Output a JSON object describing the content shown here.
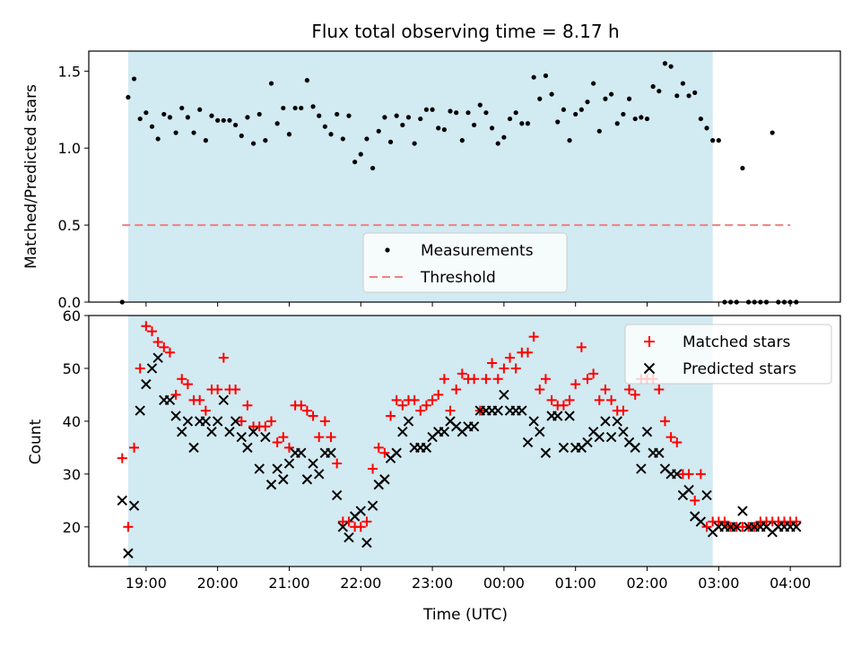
{
  "chart_data": [
    {
      "type": "scatter",
      "title": "Flux total observing time = 8.17 h",
      "xlabel": "",
      "ylabel": "Matched/Predicted stars",
      "ylim": [
        0,
        1.63
      ],
      "yticks": [
        0.0,
        0.5,
        1.0,
        1.5
      ],
      "ytick_labels": [
        "0.0",
        "0.5",
        "1.0",
        "1.5"
      ],
      "observing_window": {
        "start": "18:45",
        "end": "02:55"
      },
      "shade_color": "#add8e6",
      "threshold": {
        "name": "Threshold",
        "value": 0.5,
        "x_range": [
          "18:40",
          "04:00"
        ],
        "color": "#f08080"
      },
      "legend": {
        "placement": "lower center",
        "entries": [
          "Measurements",
          "Threshold"
        ]
      },
      "series": [
        {
          "name": "Measurements",
          "marker": "dot",
          "color": "#000000",
          "x": [
            "18:40",
            "18:45",
            "18:50",
            "18:55",
            "19:00",
            "19:05",
            "19:10",
            "19:15",
            "19:20",
            "19:25",
            "19:30",
            "19:35",
            "19:40",
            "19:45",
            "19:50",
            "19:55",
            "20:00",
            "20:05",
            "20:10",
            "20:15",
            "20:20",
            "20:25",
            "20:30",
            "20:35",
            "20:40",
            "20:45",
            "20:50",
            "20:55",
            "21:00",
            "21:05",
            "21:10",
            "21:15",
            "21:20",
            "21:25",
            "21:30",
            "21:35",
            "21:40",
            "21:45",
            "21:50",
            "21:55",
            "22:00",
            "22:05",
            "22:10",
            "22:15",
            "22:20",
            "22:25",
            "22:30",
            "22:35",
            "22:40",
            "22:45",
            "22:50",
            "22:55",
            "23:00",
            "23:05",
            "23:10",
            "23:15",
            "23:20",
            "23:25",
            "23:30",
            "23:35",
            "23:40",
            "23:45",
            "23:50",
            "23:55",
            "00:00",
            "00:05",
            "00:10",
            "00:15",
            "00:20",
            "00:25",
            "00:30",
            "00:35",
            "00:40",
            "00:45",
            "00:50",
            "00:55",
            "01:00",
            "01:05",
            "01:10",
            "01:15",
            "01:20",
            "01:25",
            "01:30",
            "01:35",
            "01:40",
            "01:45",
            "01:50",
            "01:55",
            "02:00",
            "02:05",
            "02:10",
            "02:15",
            "02:20",
            "02:25",
            "02:30",
            "02:35",
            "02:40",
            "02:45",
            "02:50",
            "02:55",
            "03:00",
            "03:05",
            "03:10",
            "03:15",
            "03:20",
            "03:25",
            "03:30",
            "03:35",
            "03:40",
            "03:45",
            "03:50",
            "03:55",
            "04:00",
            "04:05"
          ],
          "y": [
            0.0,
            1.33,
            1.45,
            1.19,
            1.23,
            1.14,
            1.06,
            1.22,
            1.2,
            1.1,
            1.26,
            1.2,
            1.1,
            1.25,
            1.05,
            1.21,
            1.18,
            1.18,
            1.18,
            1.15,
            1.08,
            1.2,
            1.03,
            1.22,
            1.05,
            1.42,
            1.16,
            1.26,
            1.09,
            1.26,
            1.26,
            1.44,
            1.27,
            1.21,
            1.14,
            1.09,
            1.22,
            1.06,
            1.21,
            0.91,
            0.96,
            1.06,
            0.87,
            1.11,
            1.2,
            1.04,
            1.21,
            1.15,
            1.2,
            1.03,
            1.19,
            1.25,
            1.25,
            1.13,
            1.12,
            1.24,
            1.23,
            1.05,
            1.23,
            1.15,
            1.28,
            1.23,
            1.13,
            1.03,
            1.07,
            1.19,
            1.23,
            1.16,
            1.16,
            1.46,
            1.32,
            1.47,
            1.35,
            1.17,
            1.25,
            1.05,
            1.22,
            1.25,
            1.3,
            1.42,
            1.11,
            1.32,
            1.35,
            1.16,
            1.22,
            1.32,
            1.19,
            1.2,
            1.19,
            1.4,
            1.37,
            1.55,
            1.53,
            1.34,
            1.42,
            1.34,
            1.36,
            1.19,
            1.13,
            1.05,
            1.05,
            0.0,
            0.0,
            0.0,
            0.87,
            0.0,
            0.0,
            0.0,
            0.0,
            1.1,
            0.0,
            0.0,
            0.0,
            0.0
          ]
        }
      ]
    },
    {
      "type": "scatter",
      "xlabel": "Time (UTC)",
      "ylabel": "Count",
      "ylim": [
        12.5,
        60
      ],
      "yticks": [
        20,
        30,
        40,
        50,
        60
      ],
      "ytick_labels": [
        "20",
        "30",
        "40",
        "50",
        "60"
      ],
      "xticks": [
        "19:00",
        "20:00",
        "21:00",
        "22:00",
        "23:00",
        "00:00",
        "01:00",
        "02:00",
        "03:00",
        "04:00"
      ],
      "observing_window": {
        "start": "18:45",
        "end": "02:55"
      },
      "shade_color": "#add8e6",
      "legend": {
        "placement": "upper right",
        "entries": [
          "Matched stars",
          "Predicted stars"
        ]
      },
      "series": [
        {
          "name": "Matched stars",
          "marker": "plus",
          "color": "#ff0000",
          "x": [
            "18:40",
            "18:45",
            "18:50",
            "18:55",
            "19:00",
            "19:05",
            "19:10",
            "19:15",
            "19:20",
            "19:25",
            "19:30",
            "19:35",
            "19:40",
            "19:45",
            "19:50",
            "19:55",
            "20:00",
            "20:05",
            "20:10",
            "20:15",
            "20:20",
            "20:25",
            "20:30",
            "20:35",
            "20:40",
            "20:45",
            "20:50",
            "20:55",
            "21:00",
            "21:05",
            "21:10",
            "21:15",
            "21:20",
            "21:25",
            "21:30",
            "21:35",
            "21:40",
            "21:45",
            "21:50",
            "21:55",
            "22:00",
            "22:05",
            "22:10",
            "22:15",
            "22:20",
            "22:25",
            "22:30",
            "22:35",
            "22:40",
            "22:45",
            "22:50",
            "22:55",
            "23:00",
            "23:05",
            "23:10",
            "23:15",
            "23:20",
            "23:25",
            "23:30",
            "23:35",
            "23:40",
            "23:45",
            "23:50",
            "23:55",
            "00:00",
            "00:05",
            "00:10",
            "00:15",
            "00:20",
            "00:25",
            "00:30",
            "00:35",
            "00:40",
            "00:45",
            "00:50",
            "00:55",
            "01:00",
            "01:05",
            "01:10",
            "01:15",
            "01:20",
            "01:25",
            "01:30",
            "01:35",
            "01:40",
            "01:45",
            "01:50",
            "01:55",
            "02:00",
            "02:05",
            "02:10",
            "02:15",
            "02:20",
            "02:25",
            "02:30",
            "02:35",
            "02:40",
            "02:45",
            "02:50",
            "02:55",
            "03:00",
            "03:05",
            "03:10",
            "03:15",
            "03:20",
            "03:25",
            "03:30",
            "03:35",
            "03:40",
            "03:45",
            "03:50",
            "03:55",
            "04:00",
            "04:05"
          ],
          "y": [
            33,
            20,
            35,
            50,
            58,
            57,
            55,
            54,
            53,
            45,
            48,
            47,
            44,
            44,
            42,
            46,
            46,
            52,
            46,
            46,
            40,
            43,
            39,
            39,
            39,
            40,
            36,
            37,
            35,
            43,
            43,
            42,
            41,
            37,
            40,
            37,
            32,
            21,
            21,
            20,
            20,
            21,
            31,
            35,
            34,
            41,
            44,
            43,
            44,
            44,
            42,
            43,
            44,
            45,
            48,
            42,
            46,
            49,
            48,
            48,
            42,
            48,
            51,
            48,
            50,
            52,
            50,
            53,
            53,
            56,
            46,
            48,
            44,
            43,
            43,
            44,
            47,
            54,
            48,
            49,
            44,
            46,
            44,
            42,
            42,
            46,
            45,
            48,
            48,
            48,
            46,
            40,
            37,
            36,
            30,
            30,
            25,
            30,
            20,
            21,
            21,
            21,
            20,
            20,
            20,
            20,
            20,
            21,
            21,
            21,
            21,
            21,
            21,
            21
          ]
        },
        {
          "name": "Predicted stars",
          "marker": "x",
          "color": "#000000",
          "x": [
            "18:40",
            "18:45",
            "18:50",
            "18:55",
            "19:00",
            "19:05",
            "19:10",
            "19:15",
            "19:20",
            "19:25",
            "19:30",
            "19:35",
            "19:40",
            "19:45",
            "19:50",
            "19:55",
            "20:00",
            "20:05",
            "20:10",
            "20:15",
            "20:20",
            "20:25",
            "20:30",
            "20:35",
            "20:40",
            "20:45",
            "20:50",
            "20:55",
            "21:00",
            "21:05",
            "21:10",
            "21:15",
            "21:20",
            "21:25",
            "21:30",
            "21:35",
            "21:40",
            "21:45",
            "21:50",
            "21:55",
            "22:00",
            "22:05",
            "22:10",
            "22:15",
            "22:20",
            "22:25",
            "22:30",
            "22:35",
            "22:40",
            "22:45",
            "22:50",
            "22:55",
            "23:00",
            "23:05",
            "23:10",
            "23:15",
            "23:20",
            "23:25",
            "23:30",
            "23:35",
            "23:40",
            "23:45",
            "23:50",
            "23:55",
            "00:00",
            "00:05",
            "00:10",
            "00:15",
            "00:20",
            "00:25",
            "00:30",
            "00:35",
            "00:40",
            "00:45",
            "00:50",
            "00:55",
            "01:00",
            "01:05",
            "01:10",
            "01:15",
            "01:20",
            "01:25",
            "01:30",
            "01:35",
            "01:40",
            "01:45",
            "01:50",
            "01:55",
            "02:00",
            "02:05",
            "02:10",
            "02:15",
            "02:20",
            "02:25",
            "02:30",
            "02:35",
            "02:40",
            "02:45",
            "02:50",
            "02:55",
            "03:00",
            "03:05",
            "03:10",
            "03:15",
            "03:20",
            "03:25",
            "03:30",
            "03:35",
            "03:40",
            "03:45",
            "03:50",
            "03:55",
            "04:00",
            "04:05"
          ],
          "y": [
            25,
            15,
            24,
            42,
            47,
            50,
            52,
            44,
            44,
            41,
            38,
            40,
            35,
            40,
            40,
            38,
            40,
            44,
            38,
            40,
            37,
            35,
            38,
            31,
            37,
            28,
            31,
            29,
            32,
            34,
            34,
            29,
            32,
            30,
            34,
            34,
            26,
            20,
            18,
            22,
            23,
            17,
            24,
            28,
            29,
            33,
            34,
            38,
            40,
            35,
            35,
            35,
            37,
            38,
            38,
            40,
            39,
            38,
            39,
            39,
            42,
            42,
            42,
            42,
            45,
            42,
            42,
            42,
            36,
            40,
            38,
            34,
            41,
            41,
            35,
            41,
            35,
            35,
            36,
            38,
            37,
            40,
            37,
            40,
            38,
            36,
            35,
            31,
            38,
            34,
            34,
            31,
            30,
            30,
            26,
            27,
            22,
            21,
            26,
            19,
            20,
            20,
            20,
            20,
            23,
            20,
            20,
            20,
            20,
            19,
            20,
            20,
            20,
            20
          ]
        }
      ]
    }
  ]
}
